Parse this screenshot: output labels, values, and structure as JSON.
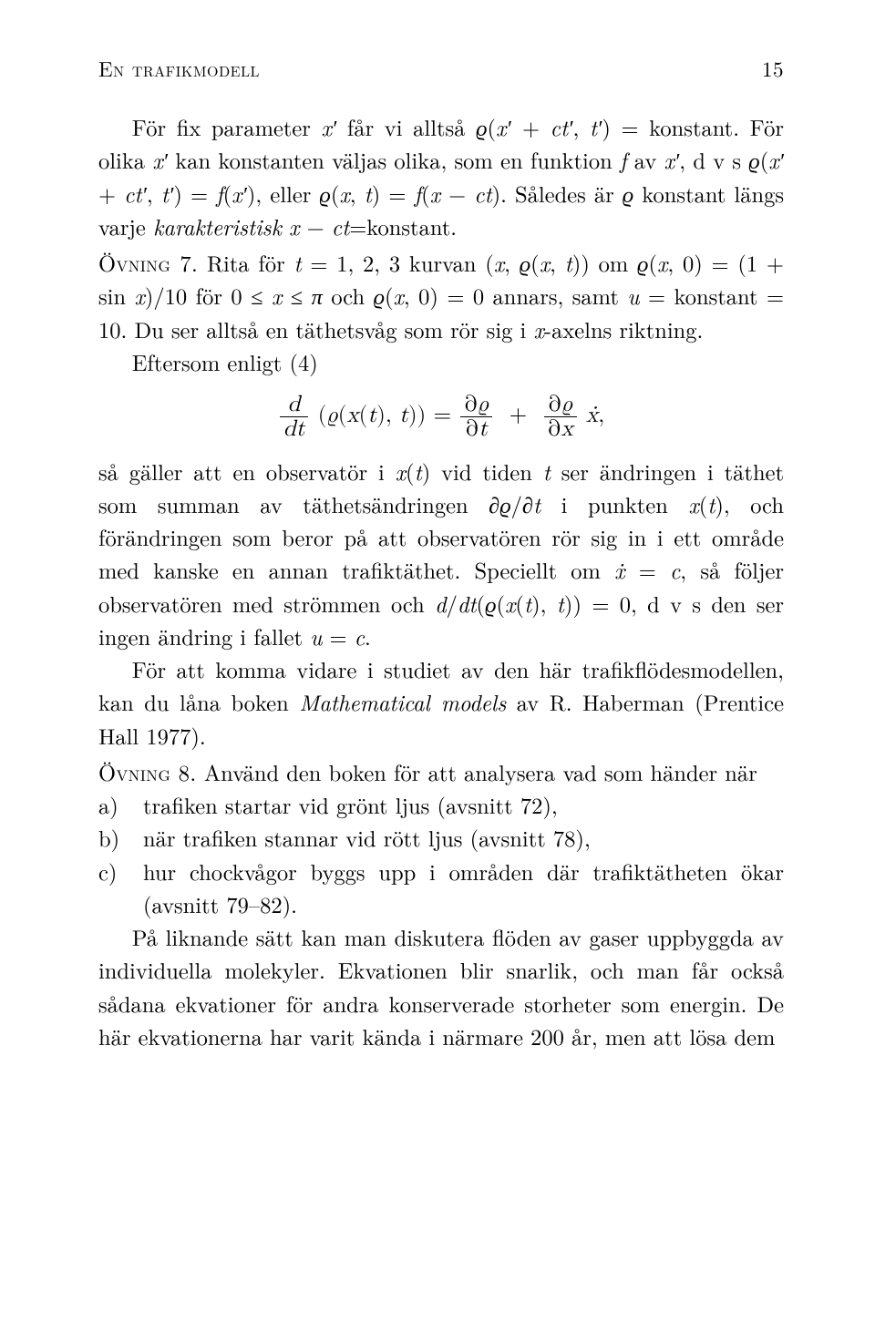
{
  "colors": {
    "text": "#000000",
    "background": "#ffffff"
  },
  "typography": {
    "body_fontsize_pt": 12,
    "line_height": 1.48,
    "font_family": "Latin Modern / Computer Modern serif"
  },
  "header": {
    "title": "En trafikmodell",
    "page_number": "15"
  },
  "para1_a": "För fix parameter ",
  "para1_b": " får vi alltså ",
  "para1_c": " = konstant. För olika ",
  "para1_d": " kan konstanten väljas olika, som en funktion ",
  "para1_e": " av ",
  "para1_f": ", d v s ",
  "para1_g": ", eller ",
  "para1_h": ". Således är ",
  "para1_i": " konstant längs varje ",
  "para1_j": "karakteristisk",
  "para1_k": "=konstant.",
  "ovning7_label": "Övning 7.",
  "ovning7_a": " Rita för ",
  "ovning7_b": " kurvan ",
  "ovning7_c": " om ",
  "ovning7_d": " för ",
  "ovning7_e": " och ",
  "ovning7_f": " annars, samt ",
  "ovning7_g": " konstant ",
  "ovning7_h": ". Du ser alltså en täthetsvåg som rör sig i ",
  "ovning7_i": "-axelns riktning.",
  "para3": "Eftersom enligt (4)",
  "para4_a": "så gäller att en observatör i ",
  "para4_b": " vid tiden ",
  "para4_c": " ser ändringen i täthet som summan av täthetsändringen ",
  "para4_d": " i punkten ",
  "para4_e": ", och förändringen som beror på att observatören rör sig in i ett område med kanske en annan trafiktäthet. Speciellt om ",
  "para4_f": ", så följer observatören med strömmen och ",
  "para4_g": ", d v s den ser ingen ändring i fallet ",
  "para4_h": ".",
  "para5_a": "För att komma vidare i studiet av den här trafikflödesmodellen, kan du låna boken ",
  "para5_book": "Mathematical models",
  "para5_b": " av R. Haberman (Prentice Hall 1977).",
  "ovning8_label": "Övning 8.",
  "ovning8_text": " Använd den boken för att analysera vad som händer när",
  "list": {
    "a": {
      "label": "a)",
      "text": "trafiken startar vid grönt ljus (avsnitt 72),"
    },
    "b": {
      "label": "b)",
      "text": "när trafiken stannar vid rött ljus (avsnitt 78),"
    },
    "c": {
      "label": "c)",
      "text": "hur chockvågor byggs upp i områden där trafiktätheten ökar (avsnitt 79–82)."
    }
  },
  "para6": "På liknande sätt kan man diskutera flöden av gaser uppbyggda av individuella molekyler. Ekvationen blir snarlik, och man får också sådana ekvationer för andra konserverade storheter som energin. De här ekvationerna har varit kända i närmare 200 år, men att lösa dem"
}
